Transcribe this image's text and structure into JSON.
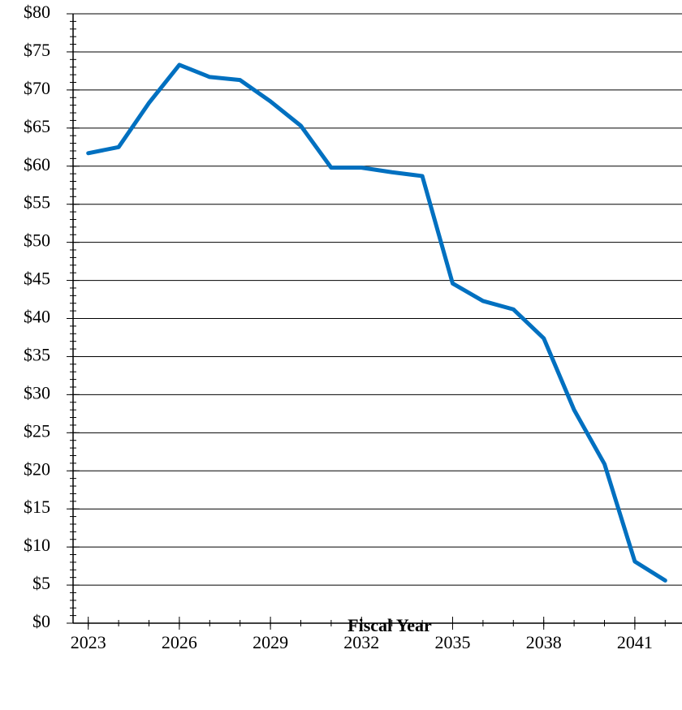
{
  "chart_data": {
    "type": "line",
    "x_label": "Fiscal Year",
    "x": [
      2023,
      2024,
      2025,
      2026,
      2027,
      2028,
      2029,
      2030,
      2031,
      2032,
      2033,
      2034,
      2035,
      2036,
      2037,
      2038,
      2039,
      2040,
      2041,
      2042
    ],
    "series": [
      {
        "color": "#0070c0",
        "values": [
          61.7,
          62.5,
          68.3,
          73.3,
          71.7,
          71.3,
          68.5,
          65.3,
          59.8,
          59.8,
          59.2,
          58.7,
          44.6,
          42.3,
          41.2,
          37.4,
          28.0,
          20.9,
          8.1,
          5.6
        ]
      }
    ],
    "xlim": [
      2022.5,
      2042.5
    ],
    "xticks": [
      2023,
      2026,
      2029,
      2032,
      2035,
      2038,
      2041
    ],
    "ylim": [
      0,
      80
    ],
    "yticks": [
      {
        "value": 0,
        "label": "$0"
      },
      {
        "value": 5,
        "label": "$5"
      },
      {
        "value": 10,
        "label": "$10"
      },
      {
        "value": 15,
        "label": "$15"
      },
      {
        "value": 20,
        "label": "$20"
      },
      {
        "value": 25,
        "label": "$25"
      },
      {
        "value": 30,
        "label": "$30"
      },
      {
        "value": 35,
        "label": "$35"
      },
      {
        "value": 40,
        "label": "$40"
      },
      {
        "value": 45,
        "label": "$45"
      },
      {
        "value": 50,
        "label": "$50"
      },
      {
        "value": 55,
        "label": "$55"
      },
      {
        "value": 60,
        "label": "$60"
      },
      {
        "value": 65,
        "label": "$65"
      },
      {
        "value": 70,
        "label": "$70"
      },
      {
        "value": 75,
        "label": "$75"
      },
      {
        "value": 80,
        "label": "$80"
      }
    ],
    "grid": true
  }
}
